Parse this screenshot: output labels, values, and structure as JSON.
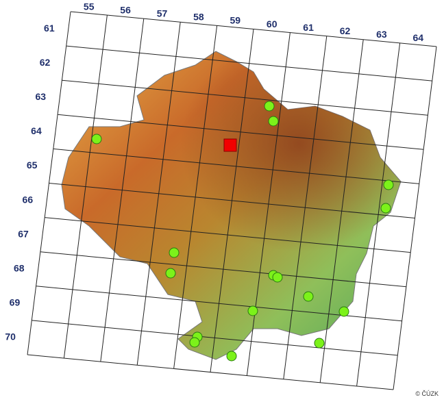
{
  "grid": {
    "columns": [
      "55",
      "56",
      "57",
      "58",
      "59",
      "60",
      "61",
      "62",
      "63",
      "64"
    ],
    "rows": [
      "61",
      "62",
      "63",
      "64",
      "65",
      "66",
      "67",
      "68",
      "69",
      "70"
    ]
  },
  "credit": "© ČÚZK"
}
